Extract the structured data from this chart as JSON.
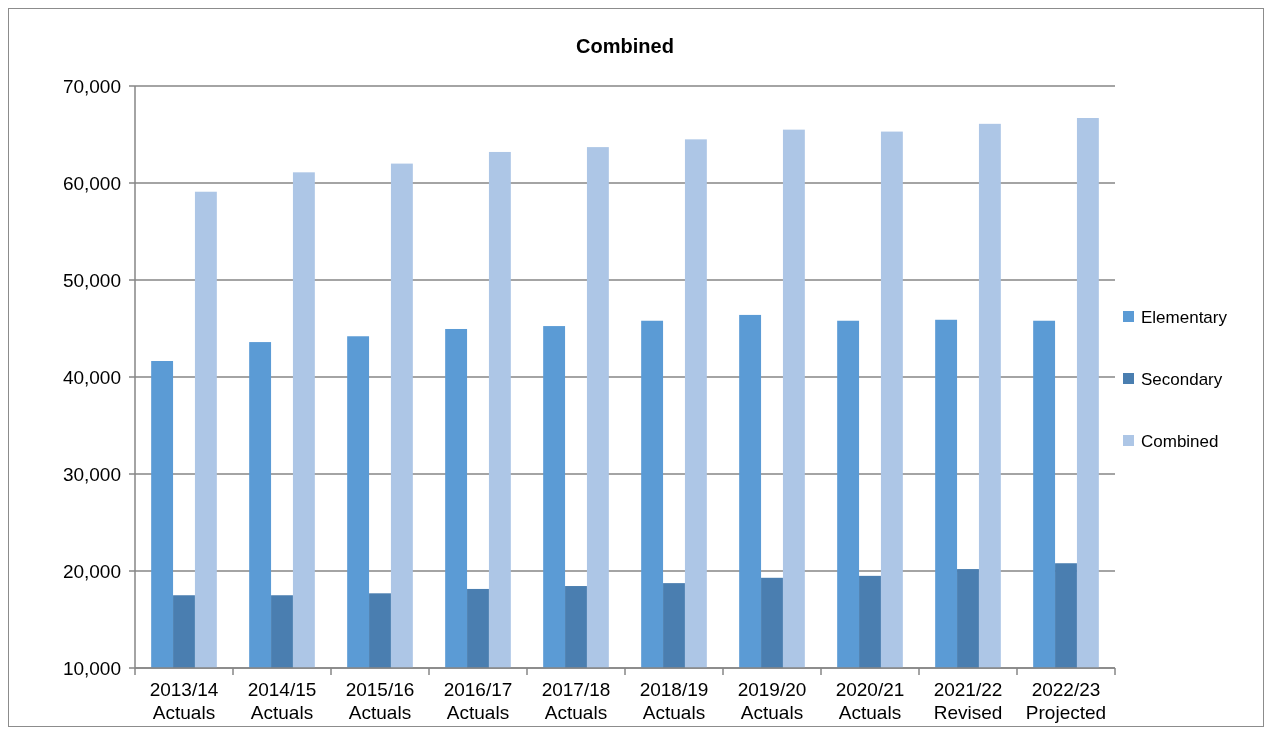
{
  "chart_data": {
    "type": "bar",
    "title": "Combined",
    "categories": [
      "2013/14\nActuals",
      "2014/15\nActuals",
      "2015/16\nActuals",
      "2016/17\nActuals",
      "2017/18\nActuals",
      "2018/19\nActuals",
      "2019/20\nActuals",
      "2020/21\nActuals",
      "2021/22\nRevised",
      "2022/23\nProjected"
    ],
    "series": [
      {
        "name": "Elementary",
        "color": "#5b9bd5",
        "values": [
          41650,
          43600,
          44200,
          44950,
          45250,
          45800,
          46400,
          45800,
          45900,
          45800
        ]
      },
      {
        "name": "Secondary",
        "color": "#4a7eb0",
        "values": [
          17500,
          17500,
          17700,
          18150,
          18450,
          18750,
          19300,
          19500,
          20200,
          20800
        ]
      },
      {
        "name": "Combined",
        "color": "#adc6e6",
        "values": [
          59100,
          61100,
          62000,
          63200,
          63700,
          64500,
          65500,
          65300,
          66100,
          66700
        ]
      }
    ],
    "ylim": [
      10000,
      70000
    ],
    "yticks": [
      {
        "value": 10000,
        "label": "10,000"
      },
      {
        "value": 20000,
        "label": "20,000"
      },
      {
        "value": 30000,
        "label": "30,000"
      },
      {
        "value": 40000,
        "label": "40,000"
      },
      {
        "value": 50000,
        "label": "50,000"
      },
      {
        "value": 60000,
        "label": "60,000"
      },
      {
        "value": 70000,
        "label": "70,000"
      }
    ],
    "grid": "y",
    "legend": "right"
  }
}
